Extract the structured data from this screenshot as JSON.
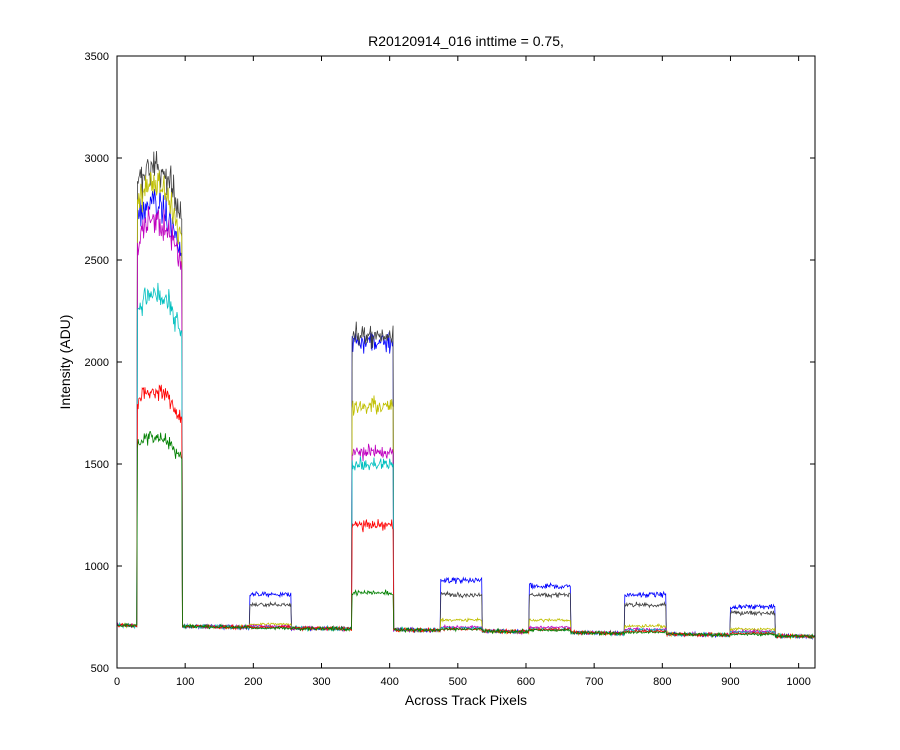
{
  "chart_data": {
    "type": "line",
    "title": "R20120914_016 inttime = 0.75,",
    "xlabel": "Across Track Pixels",
    "ylabel": "Intensity (ADU)",
    "xlim": [
      0,
      1024
    ],
    "ylim": [
      500,
      3500
    ],
    "xticks": [
      "0",
      "100",
      "200",
      "300",
      "400",
      "500",
      "600",
      "700",
      "800",
      "900",
      "1000"
    ],
    "yticks": [
      "500",
      "1000",
      "1500",
      "2000",
      "2500",
      "3000",
      "3500"
    ],
    "grid": false,
    "legend": "none",
    "baseline": {
      "start": 710,
      "end": 655
    },
    "peaks": [
      {
        "x_start": 30,
        "x_end": 95
      },
      {
        "x_start": 195,
        "x_end": 255
      },
      {
        "x_start": 345,
        "x_end": 405
      },
      {
        "x_start": 475,
        "x_end": 535
      },
      {
        "x_start": 605,
        "x_end": 665
      },
      {
        "x_start": 745,
        "x_end": 805
      },
      {
        "x_start": 900,
        "x_end": 965
      }
    ],
    "series": [
      {
        "color": "#0000ff",
        "peak_levels": [
          2780,
          860,
          2100,
          930,
          900,
          860,
          800
        ]
      },
      {
        "color": "#404040",
        "peak_levels": [
          2960,
          810,
          2130,
          860,
          860,
          810,
          770
        ]
      },
      {
        "color": "#bfbf00",
        "peak_levels": [
          2870,
          715,
          1780,
          735,
          735,
          705,
          690
        ]
      },
      {
        "color": "#bf00bf",
        "peak_levels": [
          2700,
          705,
          1560,
          700,
          700,
          690,
          680
        ]
      },
      {
        "color": "#00bfbf",
        "peak_levels": [
          2330,
          700,
          1500,
          695,
          690,
          685,
          675
        ]
      },
      {
        "color": "#ff0000",
        "peak_levels": [
          1860,
          700,
          1200,
          690,
          690,
          680,
          670
        ]
      },
      {
        "color": "#008000",
        "peak_levels": [
          1640,
          695,
          870,
          690,
          685,
          675,
          665
        ]
      }
    ]
  }
}
